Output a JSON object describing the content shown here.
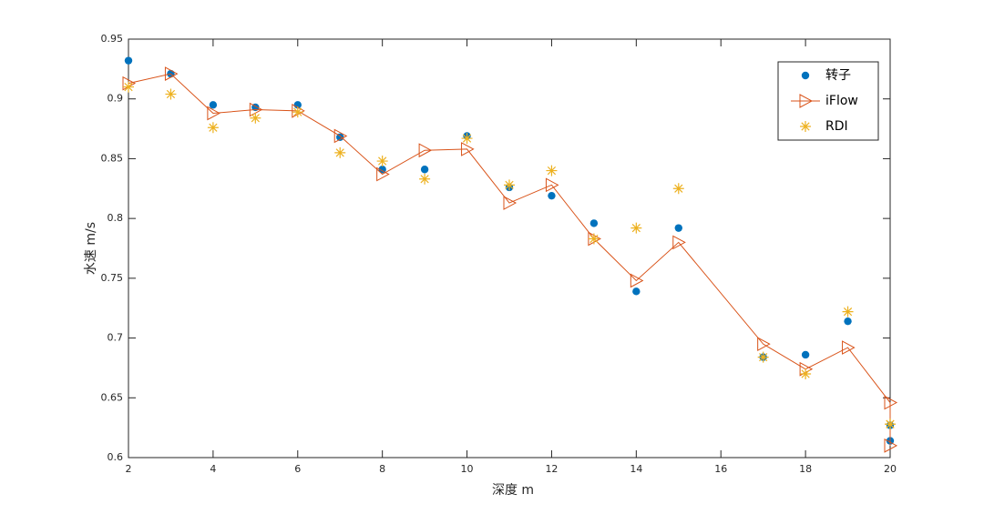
{
  "chart_data": {
    "type": "scatter",
    "xlabel": "深度 m",
    "ylabel": "水速 m/s",
    "x": [
      2,
      3,
      4,
      5,
      6,
      7,
      8,
      9,
      10,
      11,
      12,
      13,
      14,
      15,
      17,
      18,
      19,
      20,
      20
    ],
    "series": [
      {
        "name": "转子",
        "color": "#0072bd",
        "marker": "o",
        "line": false,
        "values": [
          0.932,
          0.921,
          0.895,
          0.893,
          0.895,
          0.868,
          0.841,
          0.841,
          0.869,
          0.826,
          0.819,
          0.796,
          0.739,
          0.792,
          0.684,
          0.686,
          0.714,
          0.614,
          0.627
        ]
      },
      {
        "name": "iFlow",
        "color": "#d95319",
        "marker": ">",
        "line": true,
        "values": [
          0.913,
          0.921,
          0.888,
          0.891,
          0.89,
          0.869,
          0.837,
          0.857,
          0.858,
          0.813,
          0.828,
          0.783,
          0.748,
          0.78,
          0.695,
          0.674,
          0.692,
          0.646,
          0.61
        ]
      },
      {
        "name": "RDI",
        "color": "#edb120",
        "marker": "*",
        "line": false,
        "values": [
          0.91,
          0.904,
          0.876,
          0.884,
          0.889,
          0.855,
          0.848,
          0.833,
          0.867,
          0.828,
          0.84,
          0.783,
          0.792,
          0.825,
          0.684,
          0.67,
          0.722,
          0.628,
          0.628
        ]
      }
    ],
    "xlim": [
      2,
      20
    ],
    "xticks": [
      2,
      4,
      6,
      8,
      10,
      12,
      14,
      16,
      18,
      20
    ],
    "ylim": [
      0.6,
      0.95
    ],
    "yticks": [
      0.6,
      0.65,
      0.7,
      0.75,
      0.8,
      0.85,
      0.9,
      0.95
    ],
    "grid": false,
    "legend": "top-right"
  }
}
